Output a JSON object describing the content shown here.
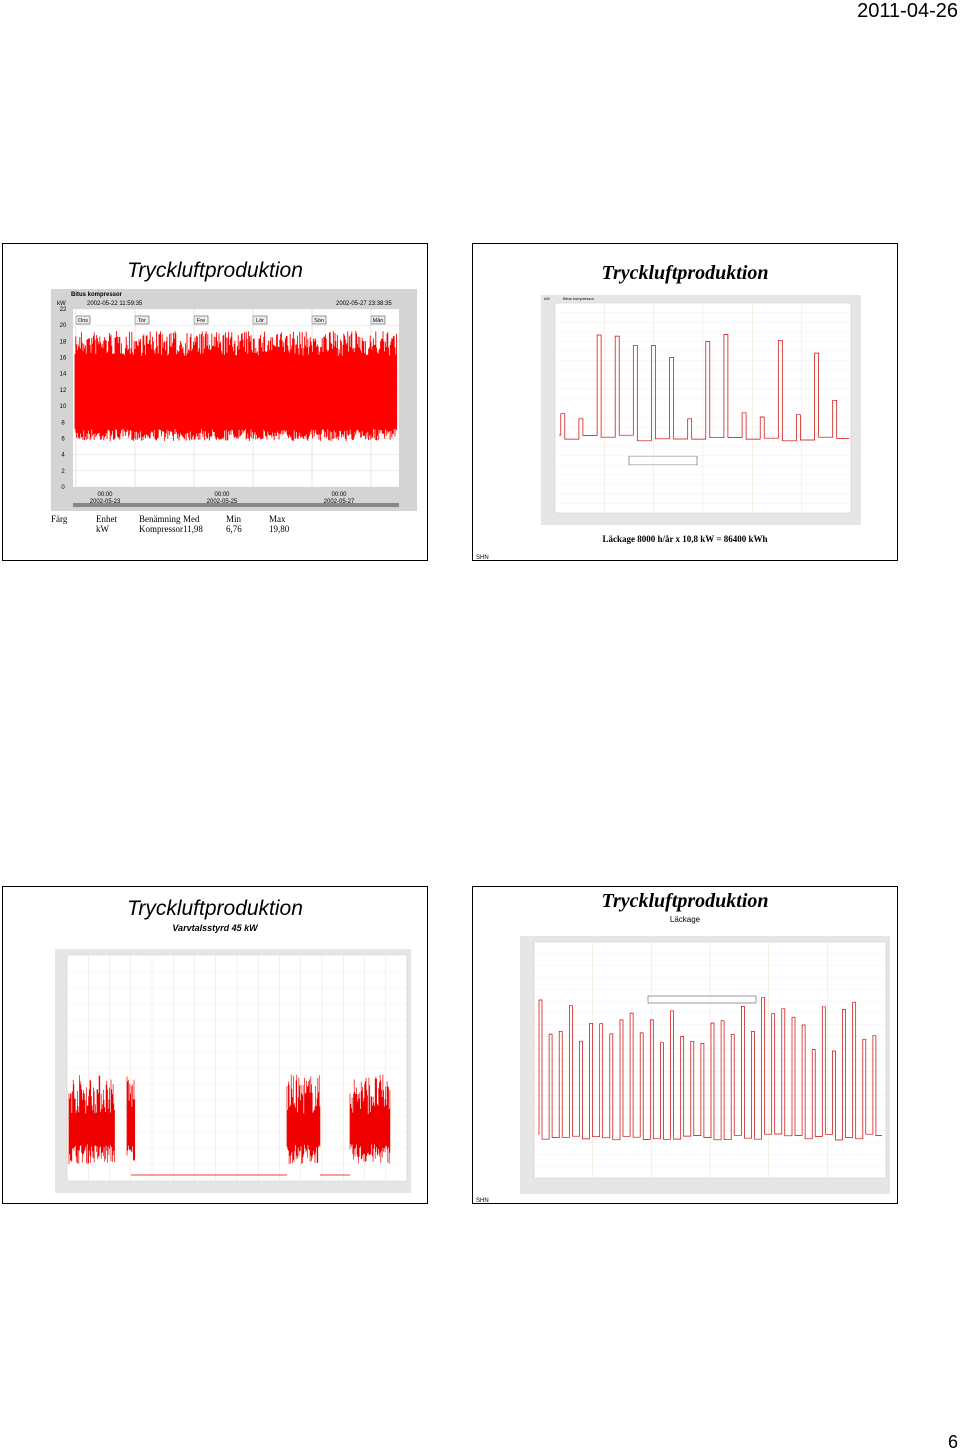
{
  "header": {
    "date": "2011-04-26"
  },
  "page_number": "6",
  "slides": [
    {
      "title": "Tryckluftproduktion",
      "chart": {
        "name": "Bitus kompressor",
        "unit": "kW",
        "start": "2002-05-22 11:59:35",
        "end": "2002-05-27 23:38:35",
        "days": [
          "Ons",
          "Tor",
          "Fre",
          "Lör",
          "Sön",
          "Mån"
        ],
        "ylim": [
          0,
          22
        ],
        "yticks": [
          0,
          2,
          4,
          6,
          8,
          10,
          12,
          14,
          16,
          18,
          20,
          22
        ],
        "xlabels": [
          {
            "time": "00:00",
            "date": "2002-05-23"
          },
          {
            "time": "00:00",
            "date": "2002-05-25"
          },
          {
            "time": "00:00",
            "date": "2002-05-27"
          }
        ]
      },
      "table": {
        "headers": [
          "Färg",
          "Enhet",
          "Benämning",
          "Med",
          "Min",
          "Max"
        ],
        "rows": [
          [
            "kW",
            "Kompressor",
            "11,98",
            "6,76",
            "19,80"
          ]
        ]
      }
    },
    {
      "title": "Tryckluftproduktion",
      "chart": {
        "name": "Bitus kompressor",
        "unit": "kW"
      },
      "caption": "Läckage 8000 h/år x 10,8 kW = 86400 kWh",
      "footer": "SHN"
    },
    {
      "title": "Tryckluftproduktion",
      "subtitle": "Varvtalsstyrd 45 kW"
    },
    {
      "title": "Tryckluftproduktion",
      "subtitle": "Läckage",
      "footer": "SHN"
    }
  ]
}
